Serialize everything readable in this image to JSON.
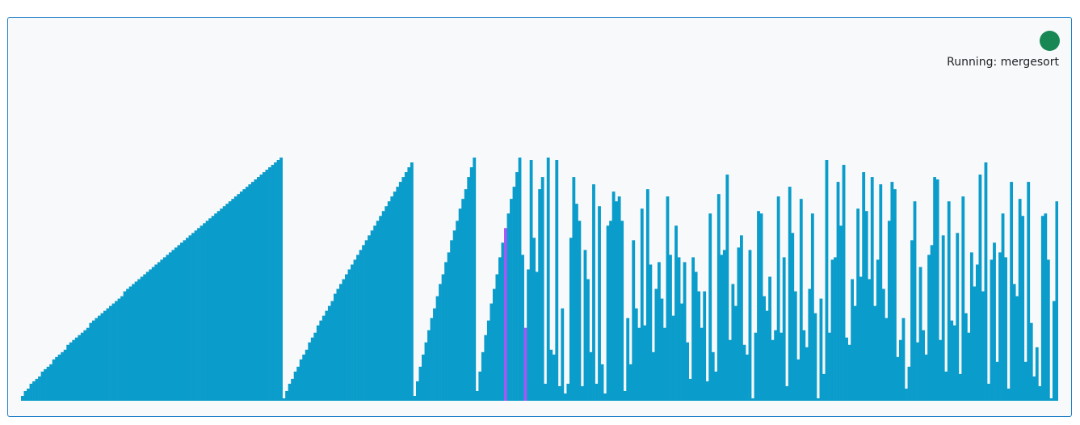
{
  "status": {
    "text": "Running: mergesort",
    "indicator_color": "#198754"
  },
  "visualizer": {
    "bar_color": "#0a9ccb",
    "highlight_color": "#a855f7",
    "value_max": 100,
    "bar_count": 365,
    "sorted_runs": [
      {
        "count": 92,
        "min": 2,
        "max": 100
      },
      {
        "count": 46,
        "min": 1,
        "max": 98
      },
      {
        "count": 22,
        "min": 2,
        "max": 100
      },
      {
        "count": 16,
        "min": 4,
        "max": 100
      }
    ],
    "highlight_indices": [
      170,
      177
    ],
    "merged_prefix": 1,
    "unsorted_seed": 7
  }
}
